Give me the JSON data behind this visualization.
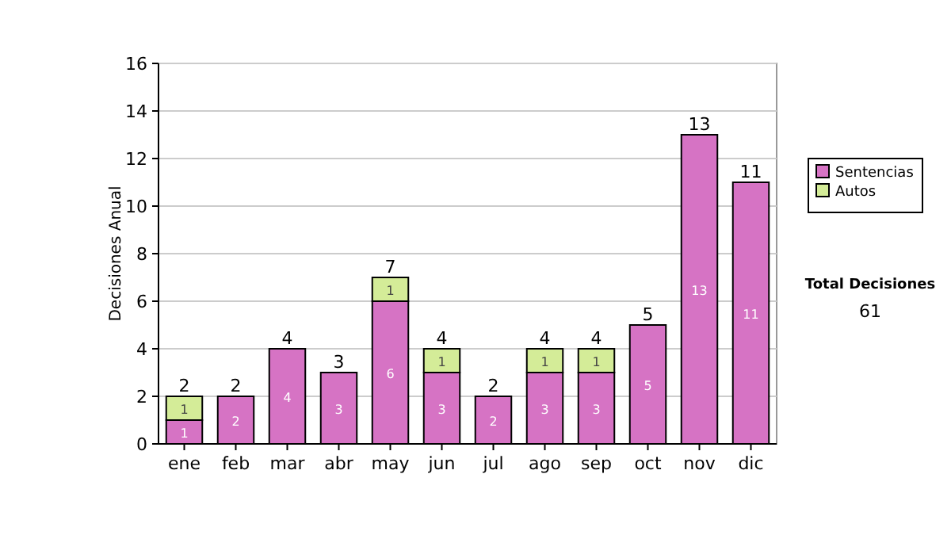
{
  "chart_data": {
    "type": "bar",
    "stacked": true,
    "ylabel": "Decisiones Anual",
    "categories": [
      "ene",
      "feb",
      "mar",
      "abr",
      "may",
      "jun",
      "jul",
      "ago",
      "sep",
      "oct",
      "nov",
      "dic"
    ],
    "series": [
      {
        "name": "Sentencias",
        "color": "#d673c4",
        "values": [
          1,
          2,
          4,
          3,
          6,
          3,
          2,
          3,
          3,
          5,
          13,
          11
        ]
      },
      {
        "name": "Autos",
        "color": "#d4ec98",
        "values": [
          1,
          null,
          null,
          null,
          1,
          1,
          null,
          1,
          1,
          null,
          null,
          null
        ]
      }
    ],
    "totals": [
      "2",
      "2",
      "4",
      "3",
      "7",
      "4",
      "2",
      "4",
      "4",
      "5",
      "13",
      "11"
    ],
    "data_labels": true,
    "ylim": [
      0,
      16
    ],
    "yticks": [
      0,
      2,
      4,
      6,
      8,
      10,
      12,
      14,
      16
    ],
    "grid": "y",
    "legend": "right",
    "annotations": [
      "Total Decisiones",
      "61"
    ]
  }
}
